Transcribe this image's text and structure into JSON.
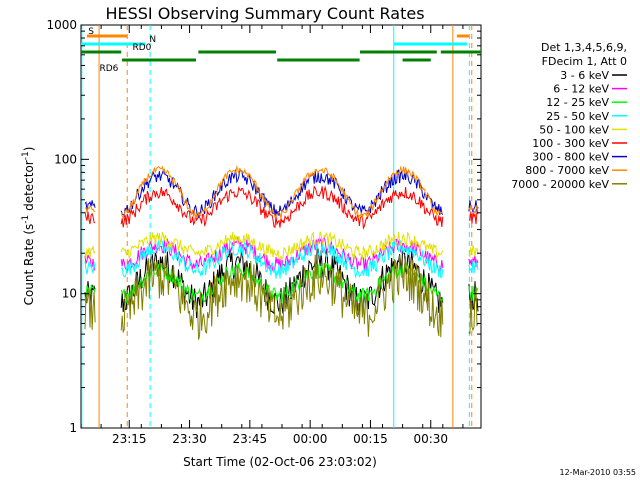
{
  "chart_data": {
    "type": "line",
    "title": "HESSI Observing Summary Count Rates",
    "xlabel": "Start Time (02-Oct-06 23:03:02)",
    "ylabel_main": "Count Rate (s",
    "ylabel_sup1": "-1",
    "ylabel_mid": " detector",
    "ylabel_sup2": "-1",
    "ylabel_end": ")",
    "yscale": "log",
    "ylim": [
      1,
      1000
    ],
    "xlim_minutes": [
      0,
      99.5
    ],
    "x_ticks": [
      {
        "m": 12,
        "label": "23:15"
      },
      {
        "m": 27,
        "label": "23:30"
      },
      {
        "m": 42,
        "label": "23:45"
      },
      {
        "m": 57,
        "label": "00:00"
      },
      {
        "m": 72,
        "label": "00:15"
      },
      {
        "m": 87,
        "label": "00:30"
      }
    ],
    "y_ticks": [
      {
        "v": 1,
        "label": "1"
      },
      {
        "v": 10,
        "label": "10"
      },
      {
        "v": 100,
        "label": "100"
      },
      {
        "v": 1000,
        "label": "1000"
      }
    ],
    "legend_header": [
      "Det 1,3,4,5,6,9,",
      "FDecim 1, Att 0"
    ],
    "series": [
      {
        "name": "3 - 6 keV",
        "color": "#000000",
        "base": 3.0,
        "amp": 14,
        "noise": 0.12
      },
      {
        "name": "6 - 12 keV",
        "color": "#ff00ff",
        "base": 12,
        "amp": 11,
        "noise": 0.06
      },
      {
        "name": "12 - 25 keV",
        "color": "#00ff00",
        "base": 6,
        "amp": 9,
        "noise": 0.06
      },
      {
        "name": "25 - 50 keV",
        "color": "#00ffff",
        "base": 10,
        "amp": 12,
        "noise": 0.06
      },
      {
        "name": "50 - 100 keV",
        "color": "#e0e000",
        "base": 16,
        "amp": 10,
        "noise": 0.05
      },
      {
        "name": "100 - 300 keV",
        "color": "#ff0000",
        "base": 32,
        "amp": 25,
        "noise": 0.05
      },
      {
        "name": "300 - 800 keV",
        "color": "#0000cc",
        "base": 37,
        "amp": 38,
        "noise": 0.05
      },
      {
        "name": "800 - 7000 keV",
        "color": "#ff8800",
        "base": 33,
        "amp": 50,
        "noise": 0.03
      },
      {
        "name": "7000 - 20000 keV",
        "color": "#808000",
        "base": 2.4,
        "amp": 11,
        "noise": 0.18
      }
    ],
    "segments": {
      "data_windows": [
        [
          1,
          3.6
        ],
        [
          10,
          90
        ],
        [
          96.5,
          98.8
        ]
      ],
      "daytime": [
        [
          10,
          29
        ],
        [
          29,
          49
        ],
        [
          49,
          70
        ],
        [
          70,
          90
        ]
      ],
      "night_gaps": [
        [
          3.6,
          10
        ],
        [
          90,
          96.5
        ]
      ]
    },
    "flags": [
      {
        "label": "S",
        "color": "#ff8800",
        "level": 1,
        "spans": [
          [
            1.5,
            11.5
          ],
          [
            93.5,
            96.6
          ]
        ],
        "label_at": 1.8
      },
      {
        "label": "N",
        "color": "#00ffff",
        "level": 2,
        "spans": [
          [
            0,
            16
          ],
          [
            77.8,
            96
          ]
        ],
        "label_at": 17
      },
      {
        "label": "RD0",
        "color": "#008000",
        "level": 3,
        "spans": [
          [
            0,
            10
          ],
          [
            29.2,
            48.5
          ],
          [
            69.4,
            88.5
          ],
          [
            89.5,
            99.5
          ]
        ],
        "label_at": 12.8
      },
      {
        "label": "RD6",
        "color": "#008000",
        "level": 4,
        "spans": [
          [
            10.2,
            28.6
          ],
          [
            48.8,
            69.3
          ],
          [
            80,
            87
          ]
        ],
        "label_at": 4.6
      }
    ],
    "vlines": [
      {
        "m": 0.2,
        "color": "#00ffff",
        "dash": false
      },
      {
        "m": 4.5,
        "color": "#ff8800",
        "dash": false
      },
      {
        "m": 11.5,
        "color": "#ff8800",
        "dash": true
      },
      {
        "m": 17.2,
        "color": "#00ffff",
        "dash": true
      },
      {
        "m": 77.8,
        "color": "#00ffff",
        "dash": false
      },
      {
        "m": 92.5,
        "color": "#ff8800",
        "dash": false
      },
      {
        "m": 96.6,
        "color": "#00ffff",
        "dash": true
      },
      {
        "m": 97.2,
        "color": "#ff8800",
        "dash": true
      }
    ],
    "timestamp": "12-Mar-2010 03:55"
  }
}
